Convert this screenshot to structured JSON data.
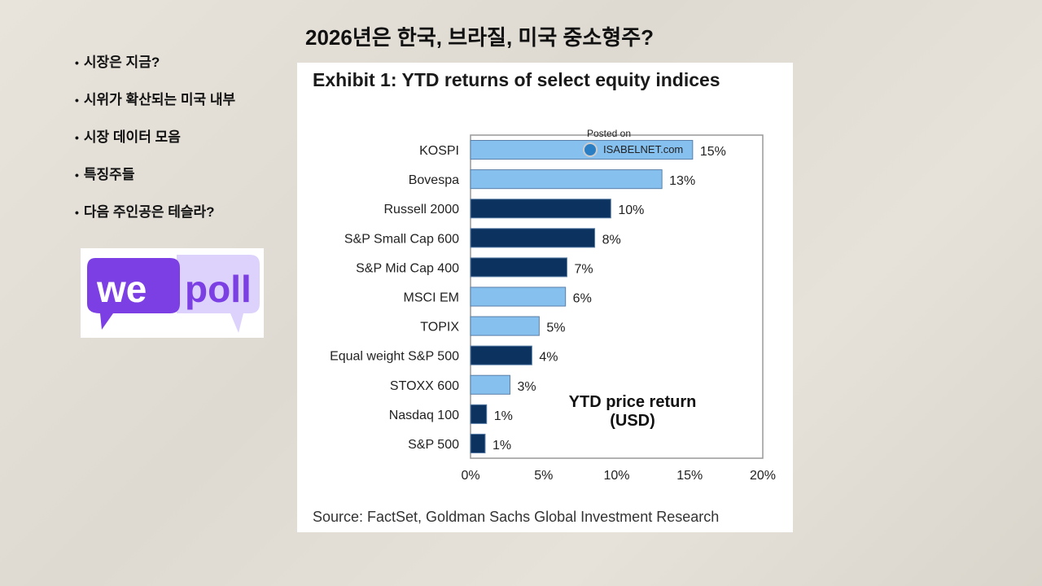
{
  "slide": {
    "title": "2026년은 한국, 브라질, 미국 중소형주?",
    "bullets": [
      "시장은 지금?",
      "시위가 확산되는 미국 내부",
      "시장 데이터 모음",
      "특징주들",
      "다음 주인공은 테슬라?"
    ],
    "logo": {
      "text_left": "we",
      "text_right": "poll",
      "colors": {
        "dark": "#7b3fe4",
        "light": "#ddd2fb"
      }
    }
  },
  "chart_data": {
    "type": "bar",
    "orientation": "horizontal",
    "title": "Exhibit 1: YTD returns of select equity indices",
    "annotation": "YTD price return (USD)",
    "annotation_lines": [
      "YTD price return",
      "(USD)"
    ],
    "watermark": {
      "line1": "Posted on",
      "line2": "ISABELNET.com"
    },
    "source": "Source: FactSet, Goldman Sachs Global Investment Research",
    "categories": [
      "KOSPI",
      "Bovespa",
      "Russell 2000",
      "S&P Small Cap 600",
      "S&P Mid Cap 400",
      "MSCI EM",
      "TOPIX",
      "Equal weight S&P 500",
      "STOXX 600",
      "Nasdaq 100",
      "S&P 500"
    ],
    "values": [
      15.2,
      13.1,
      9.6,
      8.5,
      6.6,
      6.5,
      4.7,
      4.2,
      2.7,
      1.1,
      1.0
    ],
    "data_labels": [
      "15%",
      "13%",
      "10%",
      "8%",
      "7%",
      "6%",
      "5%",
      "4%",
      "3%",
      "1%",
      "1%"
    ],
    "groups": [
      "international",
      "international",
      "us",
      "us",
      "us",
      "international",
      "international",
      "us",
      "international",
      "us",
      "us"
    ],
    "colors": {
      "international": "#86c0ef",
      "us": "#0c3360"
    },
    "xlim": [
      0,
      20
    ],
    "xticks": [
      "0%",
      "5%",
      "10%",
      "15%",
      "20%"
    ],
    "xtick_values": [
      0,
      5,
      10,
      15,
      20
    ],
    "grid": false,
    "legend": "none"
  }
}
